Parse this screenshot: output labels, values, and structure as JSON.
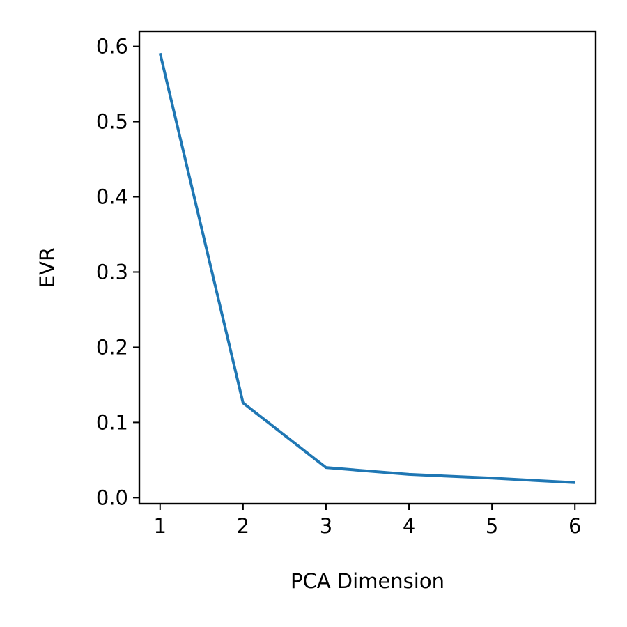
{
  "chart_data": {
    "type": "line",
    "xlabel": "PCA Dimension",
    "ylabel": "EVR",
    "x": [
      1,
      2,
      3,
      4,
      5,
      6
    ],
    "series": [
      {
        "values": [
          0.591,
          0.126,
          0.04,
          0.031,
          0.026,
          0.02
        ],
        "color": "#1f77b4"
      }
    ],
    "xlim": [
      0.75,
      6.25
    ],
    "ylim": [
      -0.008,
      0.62
    ],
    "xticks": [
      "1",
      "2",
      "3",
      "4",
      "5",
      "6"
    ],
    "yticks": [
      "0.0",
      "0.1",
      "0.2",
      "0.3",
      "0.4",
      "0.5",
      "0.6"
    ],
    "grid": false,
    "legend": "none"
  }
}
